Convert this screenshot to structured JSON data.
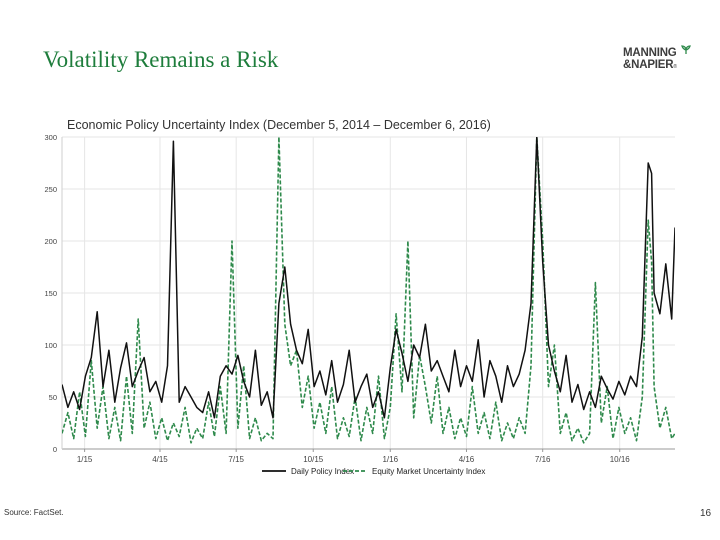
{
  "slide": {
    "title": "Volatility Remains a Risk",
    "source": "Source: FactSet.",
    "page_number": "16"
  },
  "logo": {
    "line1": "MANNING",
    "line2": "&NAPIER",
    "registered": "®"
  },
  "colors": {
    "title_green": "#1e7d3c",
    "daily_policy": "#111111",
    "equity_market": "#2f8a4c",
    "grid": "#e6e6e6"
  },
  "chart_data": {
    "type": "line",
    "title": "Economic Policy Uncertainty Index (December 5, 2014 – December 6, 2016)",
    "xlabel": "",
    "ylabel": "",
    "ylim": [
      0,
      300
    ],
    "yticks": [
      0,
      50,
      100,
      150,
      200,
      250,
      300
    ],
    "x_start": "2014-12-05",
    "x_end": "2016-12-06",
    "xticks": [
      {
        "label": "1/15",
        "date": "2015-01-01"
      },
      {
        "label": "4/15",
        "date": "2015-04-01"
      },
      {
        "label": "7/15",
        "date": "2015-07-01"
      },
      {
        "label": "10/15",
        "date": "2015-10-01"
      },
      {
        "label": "1/16",
        "date": "2016-01-01"
      },
      {
        "label": "4/16",
        "date": "2016-04-01"
      },
      {
        "label": "7/16",
        "date": "2016-07-01"
      },
      {
        "label": "10/16",
        "date": "2016-10-01"
      }
    ],
    "legend_position": "bottom",
    "series": [
      {
        "name": "Daily Policy Index",
        "style": "solid",
        "points": [
          [
            "2014-12-05",
            62
          ],
          [
            "2014-12-12",
            40
          ],
          [
            "2014-12-19",
            55
          ],
          [
            "2014-12-26",
            38
          ],
          [
            "2015-01-02",
            70
          ],
          [
            "2015-01-09",
            88
          ],
          [
            "2015-01-16",
            132
          ],
          [
            "2015-01-23",
            60
          ],
          [
            "2015-01-30",
            95
          ],
          [
            "2015-02-06",
            45
          ],
          [
            "2015-02-13",
            78
          ],
          [
            "2015-02-20",
            102
          ],
          [
            "2015-02-27",
            60
          ],
          [
            "2015-03-06",
            75
          ],
          [
            "2015-03-13",
            88
          ],
          [
            "2015-03-20",
            55
          ],
          [
            "2015-03-27",
            65
          ],
          [
            "2015-04-03",
            45
          ],
          [
            "2015-04-10",
            80
          ],
          [
            "2015-04-17",
            296
          ],
          [
            "2015-04-24",
            45
          ],
          [
            "2015-05-01",
            60
          ],
          [
            "2015-05-08",
            50
          ],
          [
            "2015-05-15",
            40
          ],
          [
            "2015-05-22",
            35
          ],
          [
            "2015-05-29",
            55
          ],
          [
            "2015-06-05",
            30
          ],
          [
            "2015-06-12",
            70
          ],
          [
            "2015-06-19",
            80
          ],
          [
            "2015-06-26",
            72
          ],
          [
            "2015-07-03",
            90
          ],
          [
            "2015-07-10",
            65
          ],
          [
            "2015-07-17",
            50
          ],
          [
            "2015-07-24",
            95
          ],
          [
            "2015-07-31",
            42
          ],
          [
            "2015-08-07",
            55
          ],
          [
            "2015-08-14",
            30
          ],
          [
            "2015-08-21",
            140
          ],
          [
            "2015-08-28",
            175
          ],
          [
            "2015-09-04",
            120
          ],
          [
            "2015-09-11",
            95
          ],
          [
            "2015-09-18",
            82
          ],
          [
            "2015-09-25",
            115
          ],
          [
            "2015-10-02",
            60
          ],
          [
            "2015-10-09",
            75
          ],
          [
            "2015-10-16",
            52
          ],
          [
            "2015-10-23",
            85
          ],
          [
            "2015-10-30",
            45
          ],
          [
            "2015-11-06",
            62
          ],
          [
            "2015-11-13",
            95
          ],
          [
            "2015-11-20",
            45
          ],
          [
            "2015-11-27",
            60
          ],
          [
            "2015-12-04",
            72
          ],
          [
            "2015-12-11",
            40
          ],
          [
            "2015-12-18",
            55
          ],
          [
            "2015-12-25",
            30
          ],
          [
            "2016-01-01",
            78
          ],
          [
            "2016-01-08",
            115
          ],
          [
            "2016-01-15",
            92
          ],
          [
            "2016-01-22",
            65
          ],
          [
            "2016-01-29",
            100
          ],
          [
            "2016-02-05",
            88
          ],
          [
            "2016-02-12",
            120
          ],
          [
            "2016-02-19",
            75
          ],
          [
            "2016-02-26",
            85
          ],
          [
            "2016-03-04",
            70
          ],
          [
            "2016-03-11",
            55
          ],
          [
            "2016-03-18",
            95
          ],
          [
            "2016-03-25",
            60
          ],
          [
            "2016-04-01",
            80
          ],
          [
            "2016-04-08",
            65
          ],
          [
            "2016-04-15",
            105
          ],
          [
            "2016-04-22",
            50
          ],
          [
            "2016-04-29",
            85
          ],
          [
            "2016-05-06",
            70
          ],
          [
            "2016-05-13",
            45
          ],
          [
            "2016-05-20",
            80
          ],
          [
            "2016-05-27",
            60
          ],
          [
            "2016-06-03",
            72
          ],
          [
            "2016-06-10",
            95
          ],
          [
            "2016-06-17",
            140
          ],
          [
            "2016-06-24",
            300
          ],
          [
            "2016-07-01",
            180
          ],
          [
            "2016-07-08",
            100
          ],
          [
            "2016-07-15",
            75
          ],
          [
            "2016-07-22",
            55
          ],
          [
            "2016-07-29",
            90
          ],
          [
            "2016-08-05",
            45
          ],
          [
            "2016-08-12",
            62
          ],
          [
            "2016-08-19",
            38
          ],
          [
            "2016-08-26",
            55
          ],
          [
            "2016-09-02",
            40
          ],
          [
            "2016-09-09",
            70
          ],
          [
            "2016-09-16",
            58
          ],
          [
            "2016-09-23",
            48
          ],
          [
            "2016-09-30",
            65
          ],
          [
            "2016-10-07",
            52
          ],
          [
            "2016-10-14",
            70
          ],
          [
            "2016-10-21",
            60
          ],
          [
            "2016-10-28",
            108
          ],
          [
            "2016-11-04",
            275
          ],
          [
            "2016-11-08",
            265
          ],
          [
            "2016-11-11",
            150
          ],
          [
            "2016-11-18",
            130
          ],
          [
            "2016-11-25",
            178
          ],
          [
            "2016-12-02",
            125
          ],
          [
            "2016-12-06",
            213
          ]
        ]
      },
      {
        "name": "Equity Market Uncertainty Index",
        "style": "dashed",
        "points": [
          [
            "2014-12-05",
            15
          ],
          [
            "2014-12-12",
            35
          ],
          [
            "2014-12-19",
            10
          ],
          [
            "2014-12-26",
            55
          ],
          [
            "2015-01-02",
            12
          ],
          [
            "2015-01-09",
            85
          ],
          [
            "2015-01-16",
            20
          ],
          [
            "2015-01-23",
            60
          ],
          [
            "2015-01-30",
            10
          ],
          [
            "2015-02-06",
            40
          ],
          [
            "2015-02-13",
            8
          ],
          [
            "2015-02-20",
            70
          ],
          [
            "2015-02-27",
            15
          ],
          [
            "2015-03-06",
            125
          ],
          [
            "2015-03-13",
            20
          ],
          [
            "2015-03-20",
            45
          ],
          [
            "2015-03-27",
            10
          ],
          [
            "2015-04-03",
            30
          ],
          [
            "2015-04-10",
            8
          ],
          [
            "2015-04-17",
            25
          ],
          [
            "2015-04-24",
            12
          ],
          [
            "2015-05-01",
            40
          ],
          [
            "2015-05-08",
            6
          ],
          [
            "2015-05-15",
            20
          ],
          [
            "2015-05-22",
            10
          ],
          [
            "2015-05-29",
            45
          ],
          [
            "2015-06-05",
            12
          ],
          [
            "2015-06-12",
            60
          ],
          [
            "2015-06-19",
            15
          ],
          [
            "2015-06-26",
            200
          ],
          [
            "2015-07-03",
            20
          ],
          [
            "2015-07-10",
            80
          ],
          [
            "2015-07-17",
            10
          ],
          [
            "2015-07-24",
            30
          ],
          [
            "2015-07-31",
            8
          ],
          [
            "2015-08-07",
            15
          ],
          [
            "2015-08-14",
            10
          ],
          [
            "2015-08-21",
            300
          ],
          [
            "2015-08-28",
            120
          ],
          [
            "2015-09-04",
            80
          ],
          [
            "2015-09-11",
            95
          ],
          [
            "2015-09-18",
            40
          ],
          [
            "2015-09-25",
            70
          ],
          [
            "2015-10-02",
            20
          ],
          [
            "2015-10-09",
            45
          ],
          [
            "2015-10-16",
            15
          ],
          [
            "2015-10-23",
            60
          ],
          [
            "2015-10-30",
            10
          ],
          [
            "2015-11-06",
            30
          ],
          [
            "2015-11-13",
            12
          ],
          [
            "2015-11-20",
            50
          ],
          [
            "2015-11-27",
            8
          ],
          [
            "2015-12-04",
            40
          ],
          [
            "2015-12-11",
            15
          ],
          [
            "2015-12-18",
            70
          ],
          [
            "2015-12-25",
            10
          ],
          [
            "2016-01-01",
            40
          ],
          [
            "2016-01-08",
            130
          ],
          [
            "2016-01-15",
            55
          ],
          [
            "2016-01-22",
            200
          ],
          [
            "2016-01-29",
            30
          ],
          [
            "2016-02-05",
            90
          ],
          [
            "2016-02-12",
            60
          ],
          [
            "2016-02-19",
            25
          ],
          [
            "2016-02-26",
            70
          ],
          [
            "2016-03-04",
            15
          ],
          [
            "2016-03-11",
            40
          ],
          [
            "2016-03-18",
            10
          ],
          [
            "2016-03-25",
            30
          ],
          [
            "2016-04-01",
            12
          ],
          [
            "2016-04-08",
            60
          ],
          [
            "2016-04-15",
            15
          ],
          [
            "2016-04-22",
            35
          ],
          [
            "2016-04-29",
            10
          ],
          [
            "2016-05-06",
            45
          ],
          [
            "2016-05-13",
            8
          ],
          [
            "2016-05-20",
            25
          ],
          [
            "2016-05-27",
            10
          ],
          [
            "2016-06-03",
            30
          ],
          [
            "2016-06-10",
            15
          ],
          [
            "2016-06-17",
            80
          ],
          [
            "2016-06-24",
            300
          ],
          [
            "2016-07-01",
            200
          ],
          [
            "2016-07-08",
            60
          ],
          [
            "2016-07-15",
            100
          ],
          [
            "2016-07-22",
            15
          ],
          [
            "2016-07-29",
            35
          ],
          [
            "2016-08-05",
            8
          ],
          [
            "2016-08-12",
            20
          ],
          [
            "2016-08-19",
            6
          ],
          [
            "2016-08-26",
            15
          ],
          [
            "2016-09-02",
            160
          ],
          [
            "2016-09-09",
            25
          ],
          [
            "2016-09-16",
            60
          ],
          [
            "2016-09-23",
            10
          ],
          [
            "2016-09-30",
            40
          ],
          [
            "2016-10-07",
            15
          ],
          [
            "2016-10-14",
            30
          ],
          [
            "2016-10-21",
            8
          ],
          [
            "2016-10-28",
            50
          ],
          [
            "2016-11-04",
            220
          ],
          [
            "2016-11-08",
            180
          ],
          [
            "2016-11-11",
            60
          ],
          [
            "2016-11-18",
            20
          ],
          [
            "2016-11-25",
            40
          ],
          [
            "2016-12-02",
            10
          ],
          [
            "2016-12-06",
            15
          ]
        ]
      }
    ]
  }
}
